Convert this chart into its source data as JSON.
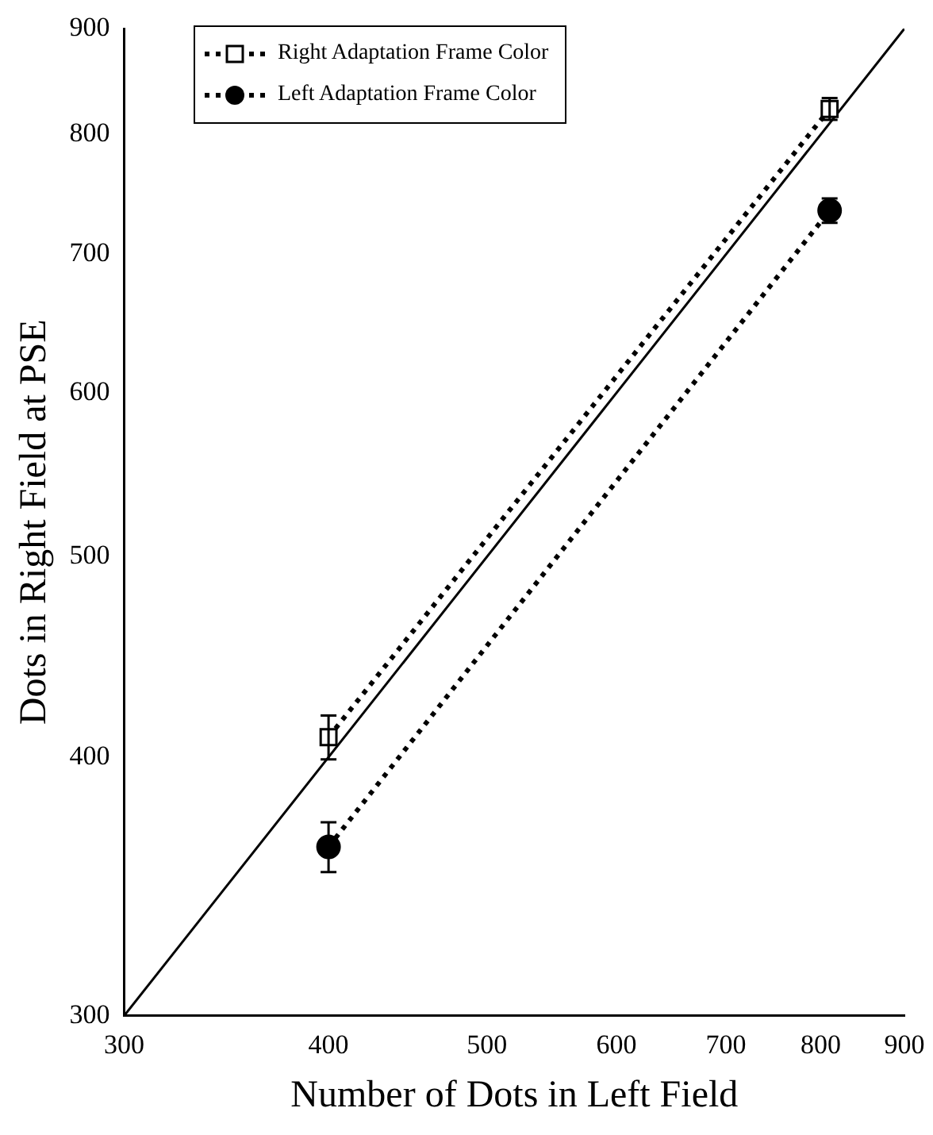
{
  "chart_data": {
    "type": "line",
    "xlabel": "Number of Dots in Left Field",
    "ylabel": "Dots in Right Field at PSE",
    "log": "xy",
    "xlim": [
      300,
      900
    ],
    "ylim": [
      300,
      900
    ],
    "xticks": [
      300,
      400,
      500,
      600,
      700,
      800,
      900
    ],
    "yticks": [
      300,
      400,
      500,
      600,
      700,
      800,
      900
    ],
    "grid": false,
    "legend": "top left",
    "line_style": "dotted",
    "series": [
      {
        "name": "Right Adaptation Frame Color",
        "color": "#000000",
        "marker": "square",
        "x": [
          400,
          810
        ],
        "values": [
          409,
          823
        ],
        "errors": [
          10,
          10
        ]
      },
      {
        "name": "Left Adaptation Frame Color",
        "color": "#000000",
        "marker": "circle",
        "x": [
          400,
          810
        ],
        "values": [
          362,
          735
        ],
        "errors": [
          10,
          10
        ]
      },
      {
        "color": "#000000",
        "marker": "none",
        "line_style": "solid",
        "x": [
          300,
          900
        ],
        "values": [
          300,
          900
        ]
      }
    ]
  }
}
